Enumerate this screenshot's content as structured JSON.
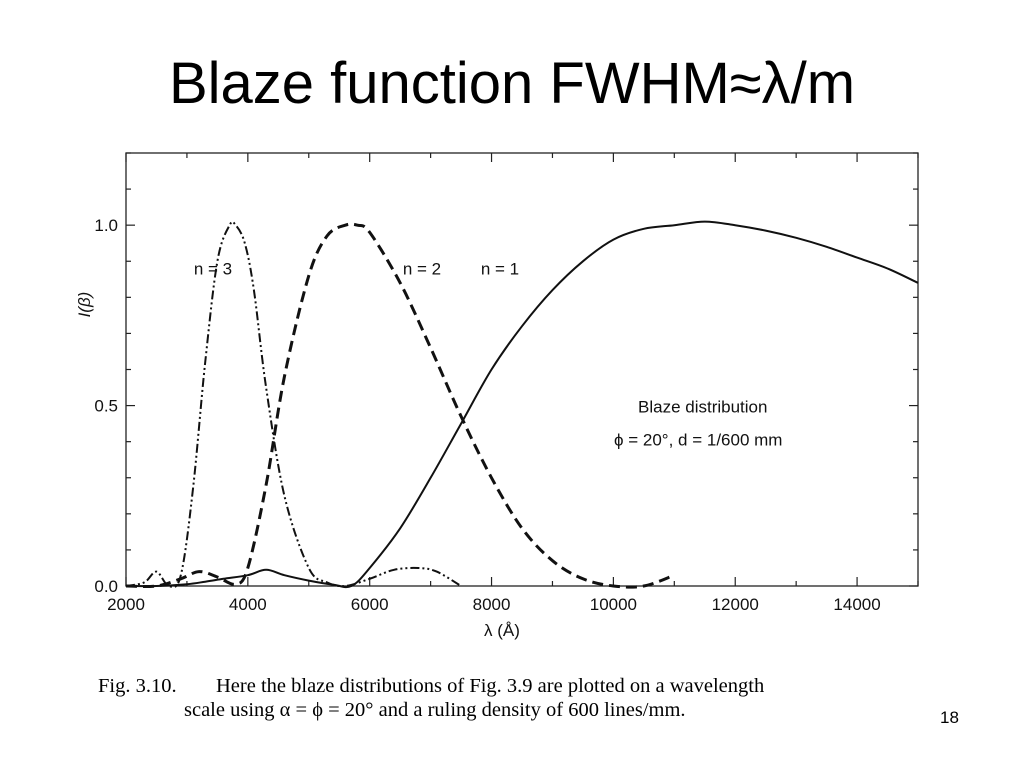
{
  "slide": {
    "title": "Blaze function FWHM≈λ/m",
    "page_number": "18"
  },
  "caption": {
    "figure_number": "Fig. 3.10.",
    "line1": "Here the blaze distributions of Fig. 3.9 are plotted on a wavelength",
    "line2": "scale using α = ϕ = 20° and a ruling density of 600 lines/mm."
  },
  "chart_data": {
    "type": "line",
    "title": "",
    "xlabel": "λ (Å)",
    "ylabel": "I(β)",
    "xlim": [
      2000,
      15000
    ],
    "ylim": [
      0,
      1.2
    ],
    "x_ticks": [
      2000,
      4000,
      6000,
      8000,
      10000,
      12000,
      14000
    ],
    "x_tick_labels": [
      "2000",
      "4000",
      "6000",
      "8000",
      "10000",
      "12000",
      "14000"
    ],
    "y_ticks": [
      0.0,
      0.5,
      1.0
    ],
    "y_tick_labels": [
      "0.0",
      "0.5",
      "1.0"
    ],
    "grid": false,
    "annotations": [
      "Blaze distribution",
      "ϕ = 20°, d = 1/600 mm"
    ],
    "series": [
      {
        "name": "n = 1",
        "style": "solid",
        "x": [
          2000,
          2500,
          3000,
          3300,
          3600,
          4000,
          4300,
          4600,
          5000,
          5400,
          5700,
          6000,
          6500,
          7000,
          7500,
          8000,
          8500,
          9000,
          9500,
          10000,
          10500,
          11000,
          11500,
          12000,
          12500,
          13000,
          13500,
          14000,
          14500,
          15000
        ],
        "y": [
          0.0,
          0.0,
          0.005,
          0.012,
          0.02,
          0.03,
          0.045,
          0.03,
          0.015,
          0.004,
          0.0,
          0.05,
          0.16,
          0.3,
          0.45,
          0.6,
          0.72,
          0.82,
          0.9,
          0.96,
          0.99,
          1.0,
          1.01,
          1.0,
          0.985,
          0.965,
          0.94,
          0.91,
          0.88,
          0.84
        ]
      },
      {
        "name": "n = 2",
        "style": "dashed",
        "x": [
          2000,
          2500,
          2900,
          3200,
          3500,
          3800,
          4000,
          4300,
          4600,
          5000,
          5300,
          5600,
          5800,
          6000,
          6500,
          7000,
          7500,
          8000,
          8500,
          9000,
          9500,
          10000,
          10500,
          11000
        ],
        "y": [
          0.0,
          0.0,
          0.02,
          0.04,
          0.025,
          0.005,
          0.05,
          0.28,
          0.58,
          0.86,
          0.97,
          1.0,
          1.0,
          0.98,
          0.84,
          0.66,
          0.47,
          0.3,
          0.16,
          0.07,
          0.02,
          0.0,
          0.0,
          0.03
        ]
      },
      {
        "name": "n = 3",
        "style": "dash-dot",
        "x": [
          2000,
          2300,
          2500,
          2700,
          2900,
          3100,
          3300,
          3500,
          3700,
          3800,
          3950,
          4100,
          4300,
          4600,
          5000,
          5300,
          5600,
          6000,
          6400,
          6800,
          7100,
          7500
        ],
        "y": [
          0.0,
          0.01,
          0.04,
          0.0,
          0.03,
          0.27,
          0.62,
          0.9,
          1.0,
          1.0,
          0.95,
          0.82,
          0.55,
          0.25,
          0.05,
          0.01,
          0.0,
          0.02,
          0.045,
          0.05,
          0.04,
          0.0
        ]
      }
    ]
  }
}
